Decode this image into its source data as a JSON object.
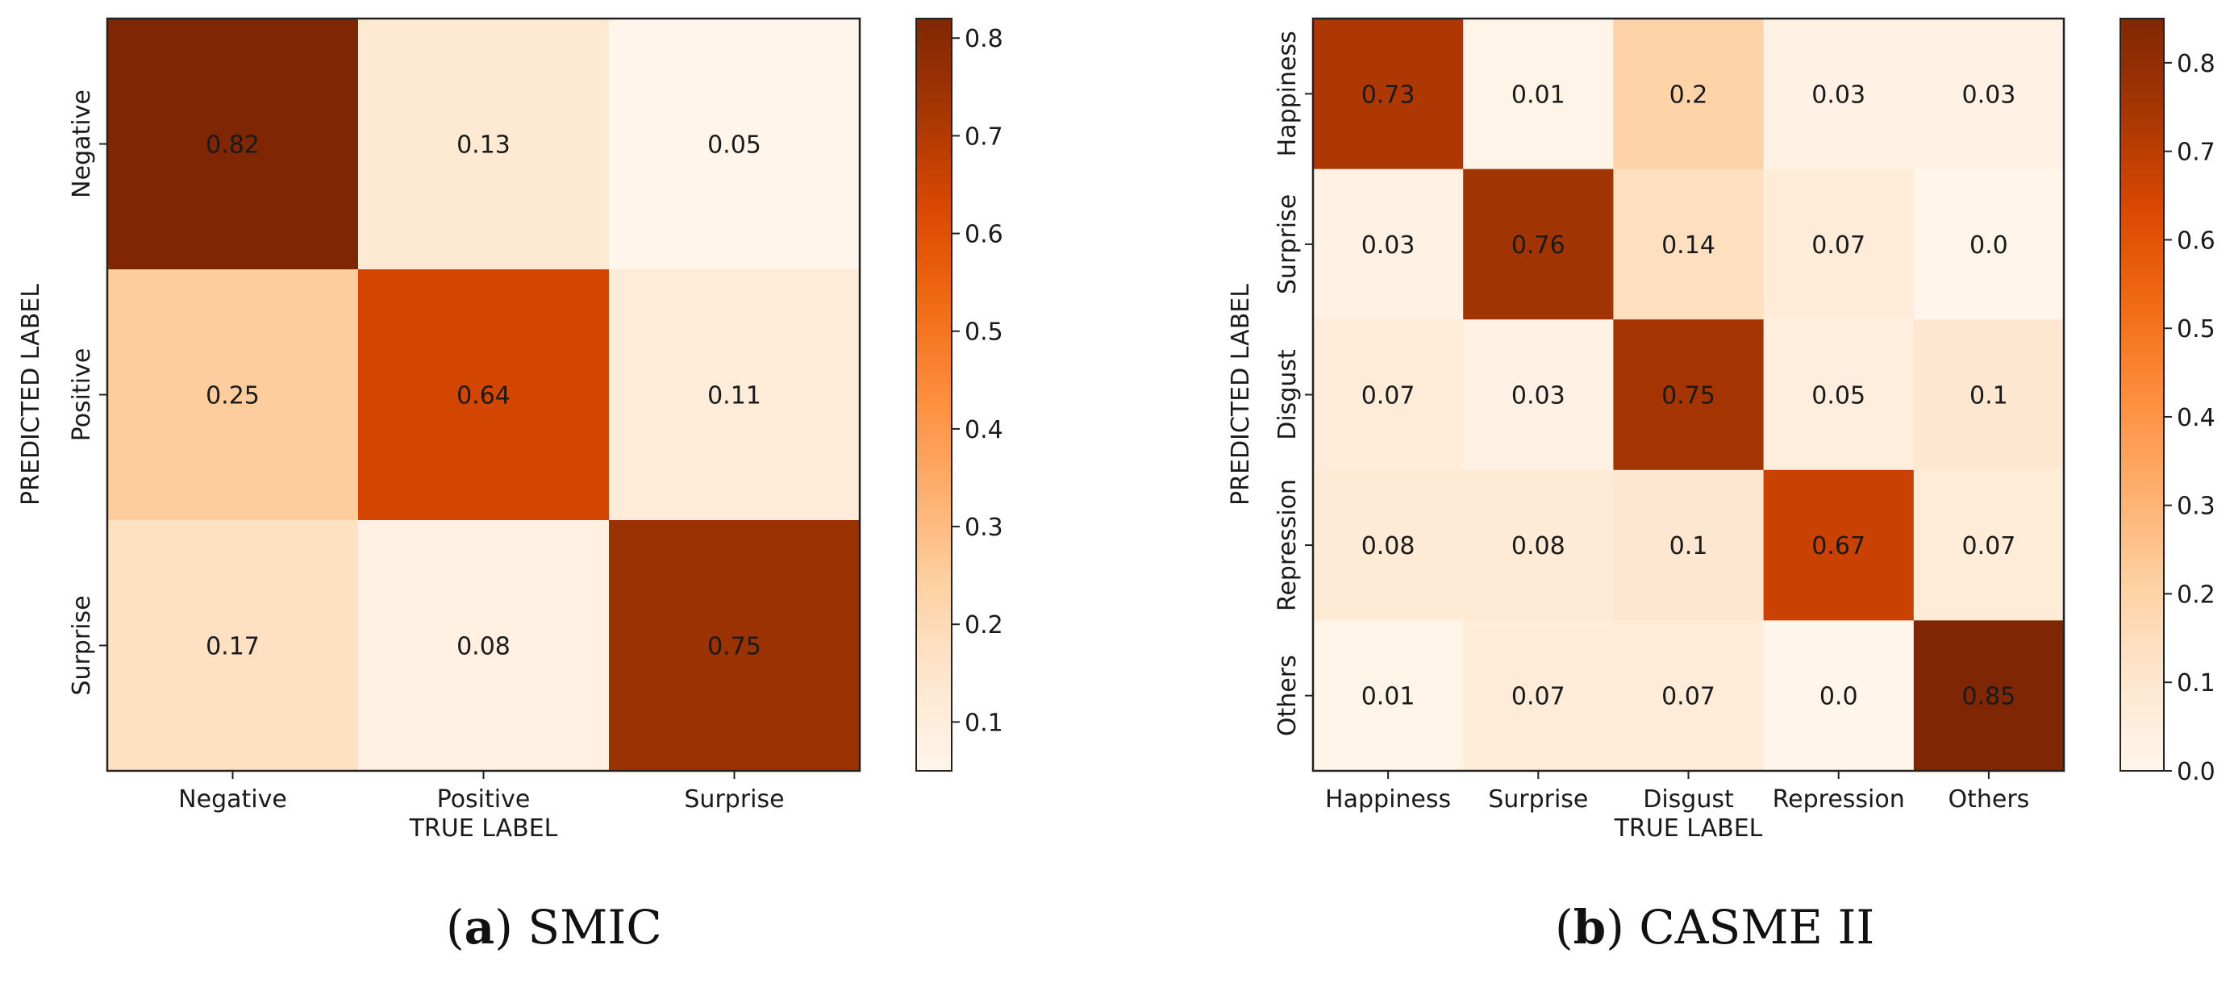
{
  "colormap": "Oranges",
  "chart_data": [
    {
      "type": "heatmap",
      "dataset": "SMIC",
      "caption_letter": "a",
      "caption_title": "SMIC",
      "xlabel": "TRUE LABEL",
      "ylabel": "PREDICTED LABEL",
      "row_labels": [
        "Negative",
        "Positive",
        "Surprise"
      ],
      "col_labels": [
        "Negative",
        "Positive",
        "Surprise"
      ],
      "values": [
        [
          0.82,
          0.13,
          0.05
        ],
        [
          0.25,
          0.64,
          0.11
        ],
        [
          0.17,
          0.08,
          0.75
        ]
      ],
      "cell_labels": [
        [
          "0.82",
          "0.13",
          "0.05"
        ],
        [
          "0.25",
          "0.64",
          "0.11"
        ],
        [
          "0.17",
          "0.08",
          "0.75"
        ]
      ],
      "vmin": 0.05,
      "vmax": 0.82,
      "colorbar_ticks": [
        0.1,
        0.2,
        0.3,
        0.4,
        0.5,
        0.6,
        0.7,
        0.8
      ],
      "colorbar_tick_labels": [
        "0.1",
        "0.2",
        "0.3",
        "0.4",
        "0.5",
        "0.6",
        "0.7",
        "0.8"
      ]
    },
    {
      "type": "heatmap",
      "dataset": "CASME II",
      "caption_letter": "b",
      "caption_title": "CASME II",
      "xlabel": "TRUE LABEL",
      "ylabel": "PREDICTED LABEL",
      "row_labels": [
        "Happiness",
        "Surprise",
        "Disgust",
        "Repression",
        "Others"
      ],
      "col_labels": [
        "Happiness",
        "Surprise",
        "Disgust",
        "Repression",
        "Others"
      ],
      "values": [
        [
          0.73,
          0.01,
          0.2,
          0.03,
          0.03
        ],
        [
          0.03,
          0.76,
          0.14,
          0.07,
          0.0
        ],
        [
          0.07,
          0.03,
          0.75,
          0.05,
          0.1
        ],
        [
          0.08,
          0.08,
          0.1,
          0.67,
          0.07
        ],
        [
          0.01,
          0.07,
          0.07,
          0.0,
          0.85
        ]
      ],
      "cell_labels": [
        [
          "0.73",
          "0.01",
          "0.2",
          "0.03",
          "0.03"
        ],
        [
          "0.03",
          "0.76",
          "0.14",
          "0.07",
          "0.0"
        ],
        [
          "0.07",
          "0.03",
          "0.75",
          "0.05",
          "0.1"
        ],
        [
          "0.08",
          "0.08",
          "0.1",
          "0.67",
          "0.07"
        ],
        [
          "0.01",
          "0.07",
          "0.07",
          "0.0",
          "0.85"
        ]
      ],
      "vmin": 0.0,
      "vmax": 0.85,
      "colorbar_ticks": [
        0.0,
        0.1,
        0.2,
        0.3,
        0.4,
        0.5,
        0.6,
        0.7,
        0.8
      ],
      "colorbar_tick_labels": [
        "0.0",
        "0.1",
        "0.2",
        "0.3",
        "0.4",
        "0.5",
        "0.6",
        "0.7",
        "0.8"
      ]
    }
  ]
}
